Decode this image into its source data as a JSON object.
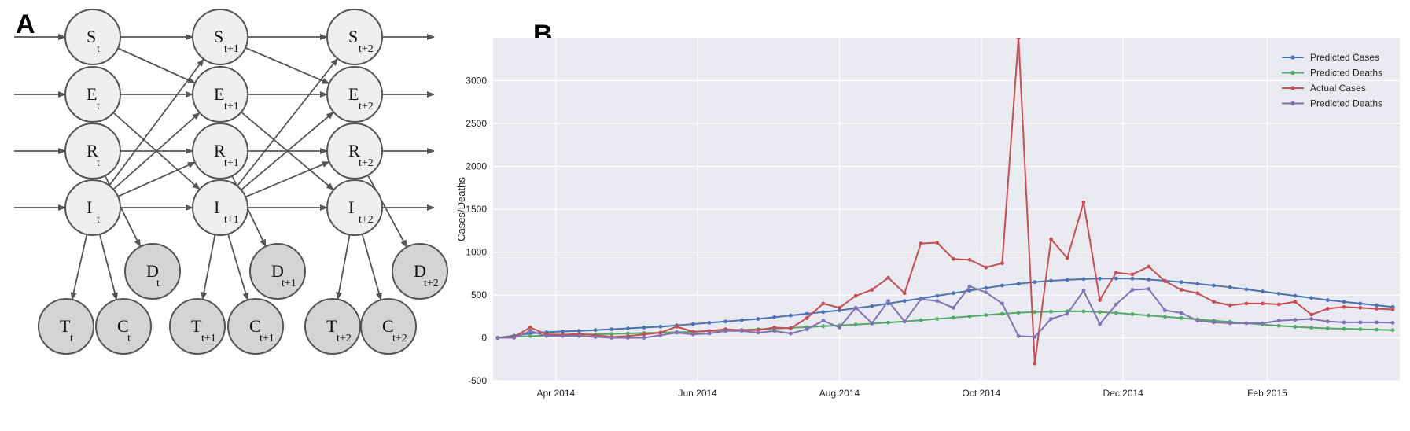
{
  "panels": {
    "a_label": "A",
    "b_label": "B"
  },
  "dbn": {
    "time_columns": [
      {
        "suffix": "t"
      },
      {
        "suffix": "t+1"
      },
      {
        "suffix": "t+2"
      }
    ],
    "state_nodes": [
      "S",
      "E",
      "R",
      "I"
    ],
    "observed_nodes": [
      "D",
      "T",
      "C"
    ],
    "edges_within_column": [
      [
        "R",
        "D"
      ],
      [
        "I",
        "T"
      ],
      [
        "I",
        "C"
      ]
    ],
    "edges_to_next_column": [
      [
        "S",
        "S"
      ],
      [
        "S",
        "E"
      ],
      [
        "E",
        "E"
      ],
      [
        "E",
        "I"
      ],
      [
        "R",
        "R"
      ],
      [
        "I",
        "I"
      ],
      [
        "I",
        "S"
      ],
      [
        "I",
        "E"
      ],
      [
        "I",
        "R"
      ]
    ],
    "node_fill": "#efefef",
    "observed_fill": "#d4d4d4",
    "edge_color": "#555555"
  },
  "chart_data": {
    "type": "line",
    "title": "",
    "xlabel": "",
    "ylabel": "Cases/Deaths",
    "ylim": [
      -500,
      3500
    ],
    "yticks": [
      -500,
      0,
      500,
      1000,
      1500,
      2000,
      2500,
      3000
    ],
    "xlim": [
      "2014-03-05",
      "2015-03-30"
    ],
    "xticks": [
      {
        "date": "2014-04-01",
        "label": "Apr 2014"
      },
      {
        "date": "2014-06-01",
        "label": "Jun 2014"
      },
      {
        "date": "2014-08-01",
        "label": "Aug 2014"
      },
      {
        "date": "2014-10-01",
        "label": "Oct 2014"
      },
      {
        "date": "2014-12-01",
        "label": "Dec 2014"
      },
      {
        "date": "2015-02-01",
        "label": "Feb 2015"
      }
    ],
    "background": "#eaeaf2",
    "grid": true,
    "legend_position": "top-right",
    "x": [
      "2014-03-07",
      "2014-03-14",
      "2014-03-21",
      "2014-03-28",
      "2014-04-04",
      "2014-04-11",
      "2014-04-18",
      "2014-04-25",
      "2014-05-02",
      "2014-05-09",
      "2014-05-16",
      "2014-05-23",
      "2014-05-30",
      "2014-06-06",
      "2014-06-13",
      "2014-06-20",
      "2014-06-27",
      "2014-07-04",
      "2014-07-11",
      "2014-07-18",
      "2014-07-25",
      "2014-08-01",
      "2014-08-08",
      "2014-08-15",
      "2014-08-22",
      "2014-08-29",
      "2014-09-05",
      "2014-09-12",
      "2014-09-19",
      "2014-09-26",
      "2014-10-03",
      "2014-10-10",
      "2014-10-17",
      "2014-10-24",
      "2014-10-31",
      "2014-11-07",
      "2014-11-14",
      "2014-11-21",
      "2014-11-28",
      "2014-12-05",
      "2014-12-12",
      "2014-12-19",
      "2014-12-26",
      "2015-01-02",
      "2015-01-09",
      "2015-01-16",
      "2015-01-23",
      "2015-01-30",
      "2015-02-06",
      "2015-02-13",
      "2015-02-20",
      "2015-02-27",
      "2015-03-06",
      "2015-03-13",
      "2015-03-20",
      "2015-03-27"
    ],
    "series": [
      {
        "name": "Predicted Cases",
        "color": "#4c72b0",
        "values": [
          0,
          25,
          50,
          65,
          75,
          80,
          90,
          100,
          110,
          120,
          130,
          145,
          160,
          175,
          190,
          205,
          220,
          240,
          260,
          280,
          300,
          320,
          345,
          370,
          400,
          430,
          460,
          490,
          520,
          550,
          580,
          610,
          630,
          650,
          665,
          675,
          685,
          690,
          692,
          690,
          680,
          665,
          650,
          630,
          610,
          590,
          565,
          540,
          515,
          490,
          465,
          440,
          420,
          400,
          380,
          360
        ]
      },
      {
        "name": "Predicted Deaths",
        "color": "#55a868",
        "values": [
          0,
          10,
          20,
          25,
          30,
          35,
          40,
          45,
          50,
          55,
          60,
          65,
          70,
          78,
          85,
          92,
          100,
          108,
          116,
          125,
          135,
          145,
          155,
          165,
          178,
          190,
          205,
          220,
          235,
          250,
          265,
          280,
          292,
          300,
          305,
          310,
          308,
          300,
          290,
          275,
          260,
          245,
          230,
          215,
          200,
          185,
          170,
          155,
          140,
          128,
          118,
          110,
          105,
          100,
          95,
          90
        ]
      },
      {
        "name": "Actual Cases",
        "color": "#c44e52",
        "values": [
          0,
          10,
          120,
          40,
          35,
          45,
          30,
          10,
          20,
          40,
          60,
          130,
          70,
          80,
          100,
          90,
          90,
          120,
          110,
          230,
          400,
          350,
          490,
          560,
          700,
          520,
          1100,
          1110,
          920,
          910,
          820,
          870,
          3500,
          -300,
          1150,
          930,
          1580,
          440,
          760,
          740,
          830,
          660,
          560,
          520,
          420,
          380,
          400,
          400,
          390,
          420,
          270,
          340,
          360,
          350,
          340,
          330
        ]
      },
      {
        "name": "Predicted Deaths",
        "color": "#8172b2",
        "values": [
          0,
          0,
          80,
          20,
          20,
          20,
          10,
          0,
          0,
          0,
          30,
          60,
          40,
          50,
          80,
          80,
          60,
          80,
          50,
          100,
          200,
          120,
          350,
          170,
          430,
          190,
          450,
          430,
          350,
          600,
          530,
          400,
          20,
          10,
          220,
          280,
          550,
          160,
          390,
          560,
          570,
          320,
          290,
          200,
          180,
          170,
          170,
          170,
          200,
          210,
          220,
          190,
          180,
          180,
          180,
          175
        ]
      }
    ]
  }
}
